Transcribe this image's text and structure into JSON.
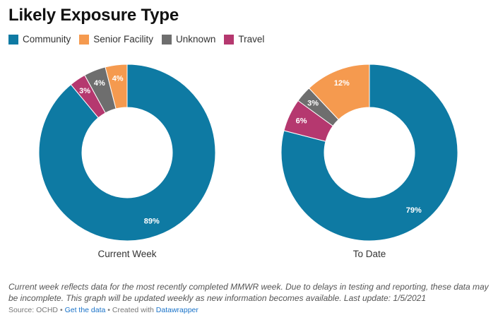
{
  "title": "Likely Exposure Type",
  "legend": [
    {
      "label": "Community",
      "color": "#0e7aa3"
    },
    {
      "label": "Senior Facility",
      "color": "#f59a4f"
    },
    {
      "label": "Unknown",
      "color": "#6e6e6e"
    },
    {
      "label": "Travel",
      "color": "#b5386f"
    }
  ],
  "chart_data": [
    {
      "type": "pie",
      "title": "Current Week",
      "categories": [
        "Community",
        "Senior Facility",
        "Unknown",
        "Travel"
      ],
      "values": [
        89,
        4,
        4,
        3
      ],
      "labels": [
        "89%",
        "4%",
        "4%",
        "3%"
      ]
    },
    {
      "type": "pie",
      "title": "To Date",
      "categories": [
        "Community",
        "Senior Facility",
        "Unknown",
        "Travel"
      ],
      "values": [
        79,
        12,
        3,
        6
      ],
      "labels": [
        "79%",
        "12%",
        "3%",
        "6%"
      ]
    }
  ],
  "note": "Current week reflects data for the most recently completed MMWR week. Due to delays in testing and reporting, these data may be incomplete. This graph will be updated weekly as new information becomes available. Last update: 1/5/2021",
  "footer": {
    "source": "Source: OCHD",
    "sep1": "•",
    "get_data": "Get the data",
    "sep2": "•",
    "created": "Created with",
    "tool": "Datawrapper"
  }
}
